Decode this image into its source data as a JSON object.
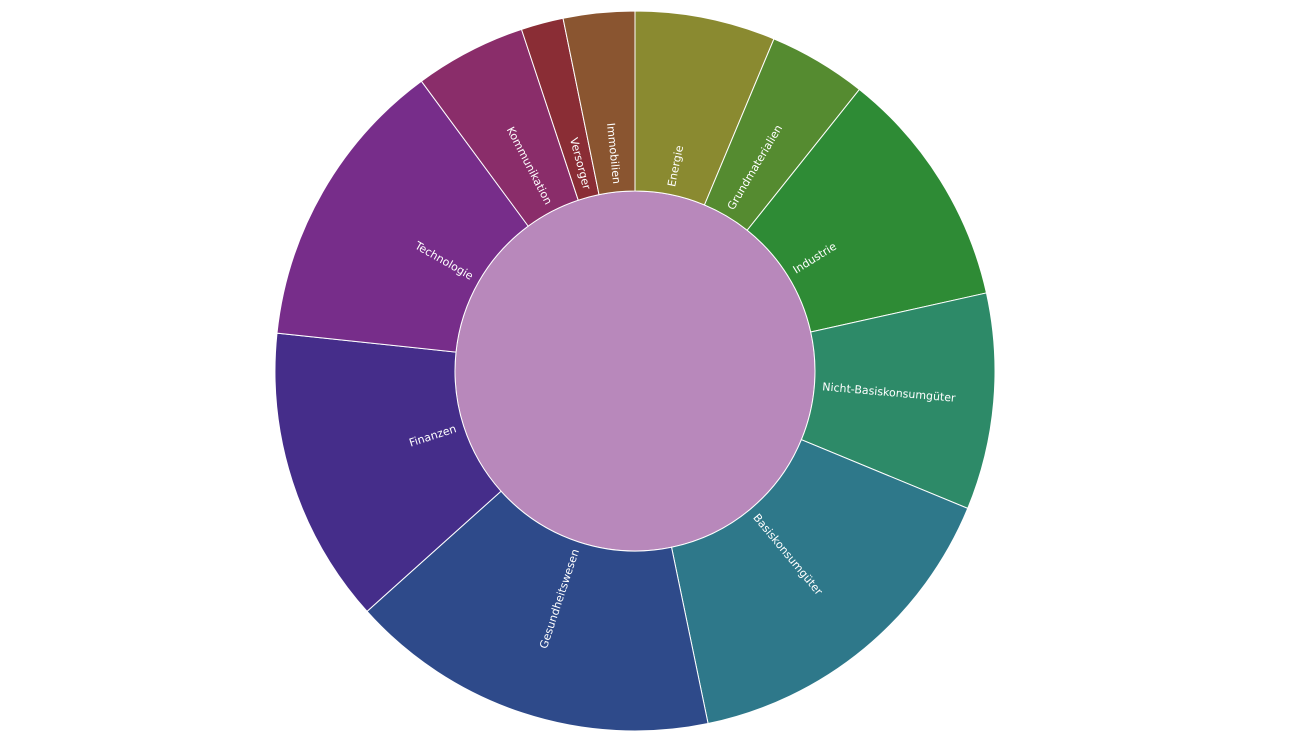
{
  "chart_data": {
    "type": "sunburst",
    "categories": [
      "Energie",
      "Grundmaterialien",
      "Industrie",
      "Nicht-Basiskonsumgüter",
      "Basiskonsumgüter",
      "Gesundheitswesen",
      "Finanzen",
      "Technologie",
      "Kommunikation",
      "Versorger",
      "Immobilien"
    ],
    "values": [
      6.3,
      4.4,
      10.8,
      9.7,
      15.5,
      16.6,
      13.3,
      13.2,
      5.0,
      1.9,
      3.2
    ],
    "colors": [
      "#8a8a30",
      "#558b30",
      "#2e8b35",
      "#2d8a68",
      "#2e788a",
      "#2e4a8a",
      "#452d8a",
      "#772d8a",
      "#8a2d6a",
      "#8a2d35",
      "#8a5530"
    ],
    "center_color": "#b888bb"
  }
}
